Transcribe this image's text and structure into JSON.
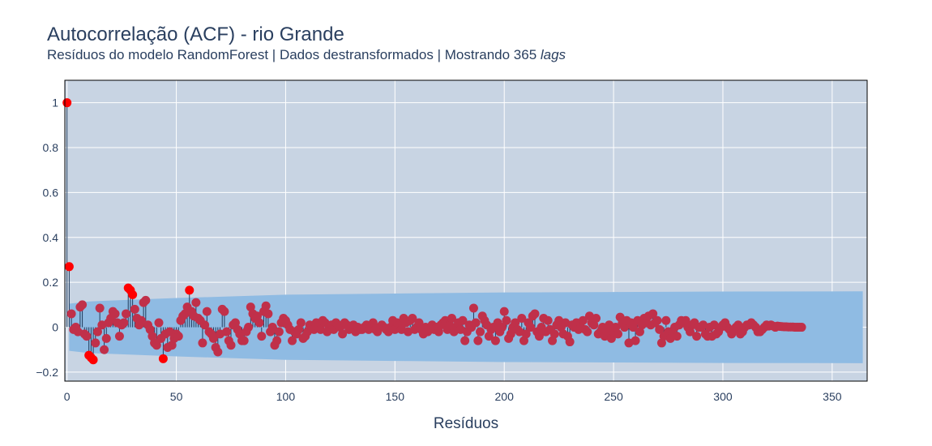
{
  "chart_data": {
    "type": "scatter",
    "title": "Autocorrelação (ACF) - rio Grande",
    "subtitle_prefix": "Resíduos do modelo RandomForest | Dados destransformados | Mostrando 365 ",
    "subtitle_italic": "lags",
    "xlabel": "Resíduos",
    "ylabel": "",
    "xlim": [
      -1,
      366
    ],
    "ylim": [
      -0.24,
      1.1
    ],
    "x_ticks": [
      0,
      50,
      100,
      150,
      200,
      250,
      300,
      350
    ],
    "y_ticks": [
      -0.2,
      0,
      0.2,
      0.4,
      0.6,
      0.8,
      1
    ],
    "y_tick_labels": [
      "−0.2",
      "0",
      "0.2",
      "0.4",
      "0.6",
      "0.8",
      "1"
    ],
    "grid": true,
    "legend": "none",
    "confidence_band": {
      "x": [
        1,
        10,
        50,
        100,
        150,
        200,
        250,
        300,
        364
      ],
      "upper": [
        0.105,
        0.115,
        0.13,
        0.145,
        0.15,
        0.155,
        0.157,
        0.159,
        0.16
      ]
    },
    "significant_lags": [
      {
        "lag": 0,
        "acf": 1.0
      },
      {
        "lag": 1,
        "acf": 0.27
      },
      {
        "lag": 10,
        "acf": -0.125
      },
      {
        "lag": 11,
        "acf": -0.135
      },
      {
        "lag": 12,
        "acf": -0.145
      },
      {
        "lag": 28,
        "acf": 0.175
      },
      {
        "lag": 29,
        "acf": 0.165
      },
      {
        "lag": 30,
        "acf": 0.145
      },
      {
        "lag": 44,
        "acf": -0.14
      },
      {
        "lag": 56,
        "acf": 0.165
      }
    ],
    "acf_values": [
      1.0,
      0.27,
      0.06,
      -0.01,
      0.0,
      -0.02,
      0.09,
      0.1,
      -0.03,
      -0.04,
      -0.125,
      -0.135,
      -0.145,
      -0.07,
      -0.02,
      0.085,
      0.01,
      -0.1,
      -0.05,
      0.02,
      0.04,
      0.07,
      0.06,
      0.02,
      -0.04,
      0.01,
      0.02,
      0.06,
      0.175,
      0.165,
      0.145,
      0.08,
      0.04,
      0.01,
      0.03,
      0.11,
      0.12,
      0.01,
      -0.01,
      -0.04,
      -0.07,
      -0.08,
      0.02,
      -0.05,
      -0.14,
      -0.03,
      -0.09,
      -0.02,
      -0.08,
      -0.05,
      -0.03,
      -0.04,
      0.03,
      0.05,
      0.06,
      0.09,
      0.165,
      0.07,
      0.05,
      0.11,
      0.04,
      0.03,
      -0.07,
      0.01,
      0.07,
      -0.02,
      -0.03,
      -0.05,
      -0.09,
      -0.11,
      -0.03,
      0.08,
      0.07,
      -0.02,
      -0.06,
      -0.08,
      0.01,
      0.02,
      -0.01,
      -0.03,
      -0.06,
      -0.06,
      -0.02,
      0.0,
      0.09,
      0.06,
      0.04,
      0.05,
      0.02,
      -0.04,
      0.07,
      0.095,
      0.06,
      -0.02,
      0.0,
      -0.08,
      -0.06,
      -0.02,
      0.02,
      0.04,
      0.03,
      0.01,
      -0.01,
      -0.06,
      -0.02,
      -0.03,
      -0.01,
      0.02,
      -0.05,
      -0.04,
      -0.02,
      0.01,
      0.0,
      -0.01,
      0.02,
      0.0,
      -0.01,
      0.03,
      0.02,
      -0.02,
      0.0,
      0.01,
      -0.01,
      0.02,
      0.01,
      0.0,
      -0.03,
      0.02,
      0.01,
      -0.01,
      0.0,
      0.01,
      -0.02,
      0.0,
      -0.01,
      -0.01,
      0.0,
      0.01,
      -0.01,
      0.0,
      0.02,
      -0.01,
      -0.02,
      0.0,
      0.01,
      0.0,
      -0.01,
      -0.02,
      0.0,
      0.03,
      -0.01,
      0.02,
      0.01,
      -0.01,
      0.04,
      0.02,
      -0.02,
      0.03,
      0.04,
      -0.01,
      0.0,
      0.02,
      -0.01,
      -0.03,
      0.0,
      -0.02,
      -0.01,
      0.01,
      -0.01,
      0.0,
      -0.02,
      0.01,
      0.02,
      0.03,
      -0.01,
      0.01,
      0.04,
      -0.02,
      0.0,
      0.02,
      -0.01,
      0.03,
      -0.06,
      -0.02,
      0.01,
      0.0,
      0.085,
      0.02,
      -0.06,
      -0.02,
      0.05,
      0.03,
      0.01,
      -0.04,
      -0.01,
      0.0,
      -0.06,
      0.02,
      -0.02,
      0.0,
      0.07,
      0.03,
      -0.05,
      -0.03,
      0.0,
      0.02,
      -0.01,
      -0.02,
      0.04,
      -0.06,
      -0.03,
      0.02,
      0.0,
      0.05,
      0.06,
      -0.02,
      -0.04,
      0.0,
      0.04,
      -0.02,
      0.03,
      -0.01,
      -0.06,
      -0.03,
      0.01,
      0.03,
      0.0,
      -0.03,
      0.02,
      -0.04,
      -0.065,
      0.01,
      0.0,
      0.02,
      -0.01,
      0.0,
      0.03,
      -0.01,
      -0.02,
      0.05,
      0.02,
      0.01,
      0.04,
      -0.03,
      -0.02,
      0.0,
      -0.04,
      -0.02,
      0.01,
      -0.05,
      -0.02,
      0.0,
      -0.03,
      0.045,
      0.02,
      0.0,
      0.03,
      -0.07,
      0.02,
      0.0,
      -0.06,
      0.03,
      -0.02,
      0.01,
      0.04,
      0.02,
      0.05,
      0.01,
      0.06,
      0.02,
      0.03,
      -0.01,
      -0.07,
      -0.04,
      0.03,
      -0.02,
      -0.05,
      -0.03,
      0.0,
      -0.04,
      0.01,
      0.03,
      0.02,
      0.03,
      0.0,
      -0.02,
      0.01,
      0.02,
      -0.04,
      0.0,
      0.0,
      0.01,
      -0.03,
      -0.04,
      0.0,
      -0.04,
      0.01,
      -0.03,
      -0.02,
      0.0,
      0.01,
      0.02,
      0.0,
      -0.01,
      -0.03,
      -0.01,
      0.0,
      0.01,
      -0.03,
      -0.02,
      0.0,
      0.01,
      0.01,
      0.02,
      0.01,
      0.0,
      -0.02,
      -0.02,
      -0.01,
      0.0,
      0.01,
      0.005,
      0.01,
      0.005,
      0.0,
      0.005,
      0.004,
      0.003,
      0.002,
      0.002,
      0.001,
      0.001,
      0.001,
      0.0,
      0.0,
      0.0,
      0.0
    ],
    "colors": {
      "plot_bg": "#c8d4e3",
      "band": "#8fbbe3",
      "stem": "#1f3b5c",
      "marker": "#c0304a",
      "marker_significant": "#ff0000",
      "grid": "#ffffff",
      "text": "#2a3f5f"
    }
  }
}
